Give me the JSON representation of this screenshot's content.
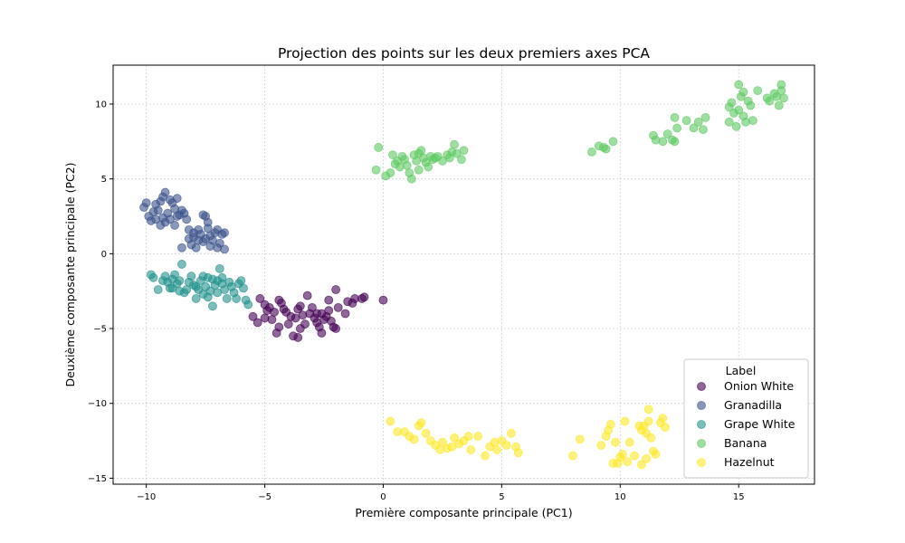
{
  "chart_data": {
    "type": "scatter",
    "title": "Projection des points sur les deux premiers axes PCA",
    "xlabel": "Première composante principale (PC1)",
    "ylabel": "Deuxième composante principale (PC2)",
    "xlim": [
      -11.4,
      18.2
    ],
    "ylim": [
      -15.4,
      12.6
    ],
    "xticks": [
      -10,
      -5,
      0,
      5,
      10,
      15
    ],
    "yticks": [
      -15,
      -10,
      -5,
      0,
      5,
      10
    ],
    "grid": true,
    "legend": {
      "title": "Label",
      "placement": "lower-right"
    },
    "series": [
      {
        "name": "Onion White",
        "color": "#440154",
        "points": [
          [
            -5.2,
            -3.0
          ],
          [
            -5.0,
            -3.4
          ],
          [
            -4.8,
            -3.6
          ],
          [
            -4.6,
            -3.9
          ],
          [
            -4.4,
            -3.1
          ],
          [
            -4.3,
            -3.3
          ],
          [
            -4.2,
            -3.7
          ],
          [
            -5.0,
            -4.3
          ],
          [
            -5.3,
            -4.6
          ],
          [
            -5.5,
            -4.2
          ],
          [
            -4.7,
            -4.4
          ],
          [
            -4.0,
            -4.7
          ],
          [
            -4.4,
            -4.9
          ],
          [
            -4.5,
            -5.3
          ],
          [
            -3.8,
            -5.5
          ],
          [
            -3.6,
            -5.6
          ],
          [
            -3.5,
            -5.0
          ],
          [
            -3.7,
            -4.3
          ],
          [
            -3.4,
            -4.1
          ],
          [
            -3.6,
            -3.7
          ],
          [
            -3.5,
            -3.5
          ],
          [
            -3.2,
            -2.8
          ],
          [
            -3.0,
            -3.6
          ],
          [
            -2.8,
            -4.0
          ],
          [
            -2.8,
            -4.6
          ],
          [
            -2.7,
            -4.9
          ],
          [
            -2.6,
            -5.3
          ],
          [
            -2.5,
            -4.4
          ],
          [
            -2.4,
            -4.2
          ],
          [
            -2.3,
            -3.8
          ],
          [
            -2.2,
            -4.5
          ],
          [
            -2.1,
            -4.9
          ],
          [
            -2.0,
            -5.0
          ],
          [
            -2.3,
            -3.1
          ],
          [
            -2.0,
            -2.4
          ],
          [
            -1.9,
            -3.6
          ],
          [
            -1.6,
            -4.0
          ],
          [
            -1.5,
            -3.2
          ],
          [
            -1.3,
            -3.3
          ],
          [
            -1.2,
            -3.0
          ],
          [
            -0.9,
            -3.0
          ],
          [
            -0.8,
            -2.9
          ],
          [
            0.0,
            -3.1
          ],
          [
            -3.1,
            -4.0
          ],
          [
            -2.6,
            -4.0
          ],
          [
            -3.9,
            -4.2
          ],
          [
            -4.9,
            -3.8
          ],
          [
            -3.3,
            -4.7
          ],
          [
            -2.9,
            -4.3
          ],
          [
            -4.1,
            -3.9
          ]
        ]
      },
      {
        "name": "Granadilla",
        "color": "#3b528b",
        "points": [
          [
            -10.0,
            3.4
          ],
          [
            -10.1,
            3.1
          ],
          [
            -9.8,
            2.2
          ],
          [
            -9.9,
            2.5
          ],
          [
            -9.7,
            2.8
          ],
          [
            -9.6,
            3.3
          ],
          [
            -9.5,
            2.9
          ],
          [
            -9.4,
            3.5
          ],
          [
            -9.3,
            3.8
          ],
          [
            -9.2,
            4.1
          ],
          [
            -9.2,
            2.1
          ],
          [
            -9.0,
            2.3
          ],
          [
            -9.1,
            2.7
          ],
          [
            -8.9,
            3.4
          ],
          [
            -8.8,
            3.0
          ],
          [
            -8.7,
            2.5
          ],
          [
            -8.6,
            2.6
          ],
          [
            -8.5,
            2.9
          ],
          [
            -8.4,
            2.7
          ],
          [
            -9.0,
            3.6
          ],
          [
            -8.7,
            3.7
          ],
          [
            -9.3,
            2.4
          ],
          [
            -8.8,
            1.9
          ],
          [
            -8.5,
            0.4
          ],
          [
            -8.2,
            1.0
          ],
          [
            -8.0,
            1.1
          ],
          [
            -8.1,
            0.6
          ],
          [
            -7.9,
            0.4
          ],
          [
            -7.8,
            1.6
          ],
          [
            -7.6,
            2.6
          ],
          [
            -7.5,
            2.5
          ],
          [
            -7.4,
            1.7
          ],
          [
            -7.3,
            1.2
          ],
          [
            -7.2,
            0.9
          ],
          [
            -7.1,
            1.4
          ],
          [
            -7.0,
            1.6
          ],
          [
            -6.9,
            0.7
          ],
          [
            -6.8,
            1.3
          ],
          [
            -6.7,
            1.4
          ],
          [
            -6.7,
            0.3
          ],
          [
            -7.6,
            0.8
          ],
          [
            -7.7,
            1.3
          ],
          [
            -7.5,
            1.0
          ],
          [
            -7.3,
            0.5
          ],
          [
            -7.0,
            0.4
          ],
          [
            -8.0,
            1.4
          ],
          [
            -8.2,
            1.6
          ],
          [
            -7.8,
            0.9
          ],
          [
            -7.4,
            2.1
          ],
          [
            -9.6,
            2.3
          ],
          [
            -9.4,
            1.9
          ],
          [
            -8.3,
            2.3
          ]
        ]
      },
      {
        "name": "Grape White",
        "color": "#21918c",
        "points": [
          [
            -9.8,
            -1.4
          ],
          [
            -9.7,
            -1.6
          ],
          [
            -9.5,
            -2.4
          ],
          [
            -9.3,
            -1.8
          ],
          [
            -9.2,
            -1.5
          ],
          [
            -9.1,
            -1.9
          ],
          [
            -9.0,
            -2.3
          ],
          [
            -8.9,
            -1.7
          ],
          [
            -8.8,
            -1.4
          ],
          [
            -8.7,
            -2.0
          ],
          [
            -8.6,
            -1.8
          ],
          [
            -8.5,
            -0.7
          ],
          [
            -8.4,
            -2.6
          ],
          [
            -8.2,
            -1.9
          ],
          [
            -8.1,
            -1.5
          ],
          [
            -8.0,
            -2.1
          ],
          [
            -7.9,
            -3.0
          ],
          [
            -7.8,
            -2.4
          ],
          [
            -7.7,
            -1.8
          ],
          [
            -7.6,
            -2.7
          ],
          [
            -7.5,
            -2.2
          ],
          [
            -7.4,
            -1.6
          ],
          [
            -7.3,
            -2.5
          ],
          [
            -7.2,
            -3.5
          ],
          [
            -7.1,
            -2.1
          ],
          [
            -7.0,
            -1.8
          ],
          [
            -6.9,
            -1.0
          ],
          [
            -6.8,
            -1.6
          ],
          [
            -6.7,
            -2.4
          ],
          [
            -6.6,
            -3.0
          ],
          [
            -6.5,
            -1.9
          ],
          [
            -6.4,
            -2.2
          ],
          [
            -6.3,
            -2.6
          ],
          [
            -6.2,
            -3.0
          ],
          [
            -6.1,
            -2.0
          ],
          [
            -6.0,
            -1.8
          ],
          [
            -5.9,
            -2.3
          ],
          [
            -5.8,
            -3.1
          ],
          [
            -5.7,
            -3.4
          ],
          [
            -7.6,
            -1.5
          ],
          [
            -7.9,
            -2.2
          ],
          [
            -8.3,
            -2.4
          ],
          [
            -7.4,
            -2.9
          ],
          [
            -6.8,
            -2.0
          ],
          [
            -7.2,
            -1.7
          ],
          [
            -8.6,
            -2.5
          ],
          [
            -8.9,
            -2.3
          ],
          [
            -7.0,
            -2.6
          ]
        ]
      },
      {
        "name": "Banana",
        "color": "#5ec962",
        "points": [
          [
            -0.2,
            7.1
          ],
          [
            -0.3,
            5.6
          ],
          [
            0.1,
            5.2
          ],
          [
            0.3,
            5.4
          ],
          [
            0.4,
            6.6
          ],
          [
            0.6,
            6.2
          ],
          [
            0.7,
            5.8
          ],
          [
            0.8,
            6.5
          ],
          [
            0.9,
            6.3
          ],
          [
            1.0,
            5.9
          ],
          [
            1.1,
            5.4
          ],
          [
            1.2,
            5.0
          ],
          [
            1.3,
            6.6
          ],
          [
            1.4,
            6.2
          ],
          [
            1.5,
            5.6
          ],
          [
            1.6,
            6.9
          ],
          [
            1.7,
            6.4
          ],
          [
            1.8,
            6.1
          ],
          [
            1.9,
            5.8
          ],
          [
            2.0,
            6.5
          ],
          [
            2.1,
            6.3
          ],
          [
            2.3,
            6.5
          ],
          [
            2.5,
            6.2
          ],
          [
            2.7,
            6.6
          ],
          [
            2.8,
            6.4
          ],
          [
            2.9,
            6.8
          ],
          [
            3.0,
            7.3
          ],
          [
            3.1,
            6.7
          ],
          [
            3.3,
            6.3
          ],
          [
            3.4,
            6.9
          ],
          [
            0.5,
            6.0
          ],
          [
            1.5,
            6.7
          ],
          [
            2.2,
            6.4
          ],
          [
            8.8,
            6.8
          ],
          [
            9.1,
            7.2
          ],
          [
            9.3,
            7.1
          ],
          [
            9.4,
            7.0
          ],
          [
            9.7,
            7.5
          ],
          [
            11.4,
            7.9
          ],
          [
            11.5,
            7.6
          ],
          [
            11.8,
            7.5
          ],
          [
            12.0,
            8.0
          ],
          [
            12.2,
            7.6
          ],
          [
            12.3,
            7.5
          ],
          [
            12.4,
            8.4
          ],
          [
            12.3,
            9.1
          ],
          [
            12.8,
            8.9
          ],
          [
            13.1,
            8.4
          ],
          [
            13.3,
            8.8
          ],
          [
            13.5,
            8.3
          ],
          [
            13.6,
            9.1
          ],
          [
            14.6,
            9.8
          ],
          [
            14.7,
            10.1
          ],
          [
            14.8,
            9.4
          ],
          [
            14.9,
            8.5
          ],
          [
            15.0,
            9.6
          ],
          [
            15.1,
            10.5
          ],
          [
            15.2,
            9.2
          ],
          [
            15.3,
            8.8
          ],
          [
            15.4,
            10.2
          ],
          [
            15.5,
            9.9
          ],
          [
            15.6,
            8.9
          ],
          [
            15.0,
            11.3
          ],
          [
            15.2,
            10.8
          ],
          [
            15.8,
            10.9
          ],
          [
            16.2,
            10.4
          ],
          [
            16.3,
            10.2
          ],
          [
            16.5,
            10.7
          ],
          [
            16.6,
            10.5
          ],
          [
            16.7,
            9.9
          ],
          [
            16.8,
            10.9
          ],
          [
            16.8,
            11.3
          ],
          [
            16.9,
            10.4
          ],
          [
            14.6,
            8.8
          ]
        ]
      },
      {
        "name": "Hazelnut",
        "color": "#fde725",
        "points": [
          [
            0.3,
            -11.2
          ],
          [
            0.6,
            -11.9
          ],
          [
            0.9,
            -11.9
          ],
          [
            1.1,
            -12.2
          ],
          [
            1.3,
            -12.4
          ],
          [
            1.5,
            -11.5
          ],
          [
            1.6,
            -11.3
          ],
          [
            1.8,
            -12.0
          ],
          [
            2.0,
            -12.5
          ],
          [
            2.2,
            -12.8
          ],
          [
            2.4,
            -13.1
          ],
          [
            2.5,
            -12.6
          ],
          [
            2.7,
            -13.0
          ],
          [
            2.9,
            -12.9
          ],
          [
            3.0,
            -12.3
          ],
          [
            3.2,
            -12.7
          ],
          [
            3.4,
            -12.5
          ],
          [
            3.6,
            -12.2
          ],
          [
            3.7,
            -13.1
          ],
          [
            4.0,
            -12.2
          ],
          [
            4.3,
            -13.5
          ],
          [
            4.5,
            -12.9
          ],
          [
            4.7,
            -12.6
          ],
          [
            4.8,
            -13.1
          ],
          [
            5.0,
            -12.5
          ],
          [
            5.2,
            -12.8
          ],
          [
            5.4,
            -12.0
          ],
          [
            5.6,
            -12.9
          ],
          [
            5.7,
            -13.3
          ],
          [
            8.0,
            -13.5
          ],
          [
            8.3,
            -12.4
          ],
          [
            9.2,
            -12.8
          ],
          [
            9.4,
            -12.2
          ],
          [
            9.5,
            -11.8
          ],
          [
            9.6,
            -11.4
          ],
          [
            9.7,
            -14.0
          ],
          [
            9.8,
            -12.6
          ],
          [
            9.9,
            -14.0
          ],
          [
            10.0,
            -13.6
          ],
          [
            10.1,
            -13.4
          ],
          [
            10.2,
            -11.2
          ],
          [
            10.3,
            -13.9
          ],
          [
            10.4,
            -12.6
          ],
          [
            10.6,
            -13.5
          ],
          [
            10.8,
            -11.5
          ],
          [
            10.9,
            -11.8
          ],
          [
            11.0,
            -11.5
          ],
          [
            11.1,
            -12.0
          ],
          [
            11.2,
            -10.4
          ],
          [
            11.2,
            -11.2
          ],
          [
            11.3,
            -12.3
          ],
          [
            11.4,
            -13.2
          ],
          [
            11.5,
            -13.4
          ],
          [
            11.7,
            -11.3
          ],
          [
            11.8,
            -11.0
          ],
          [
            11.9,
            -11.6
          ],
          [
            11.1,
            -13.7
          ],
          [
            10.9,
            -14.1
          ]
        ]
      }
    ]
  }
}
